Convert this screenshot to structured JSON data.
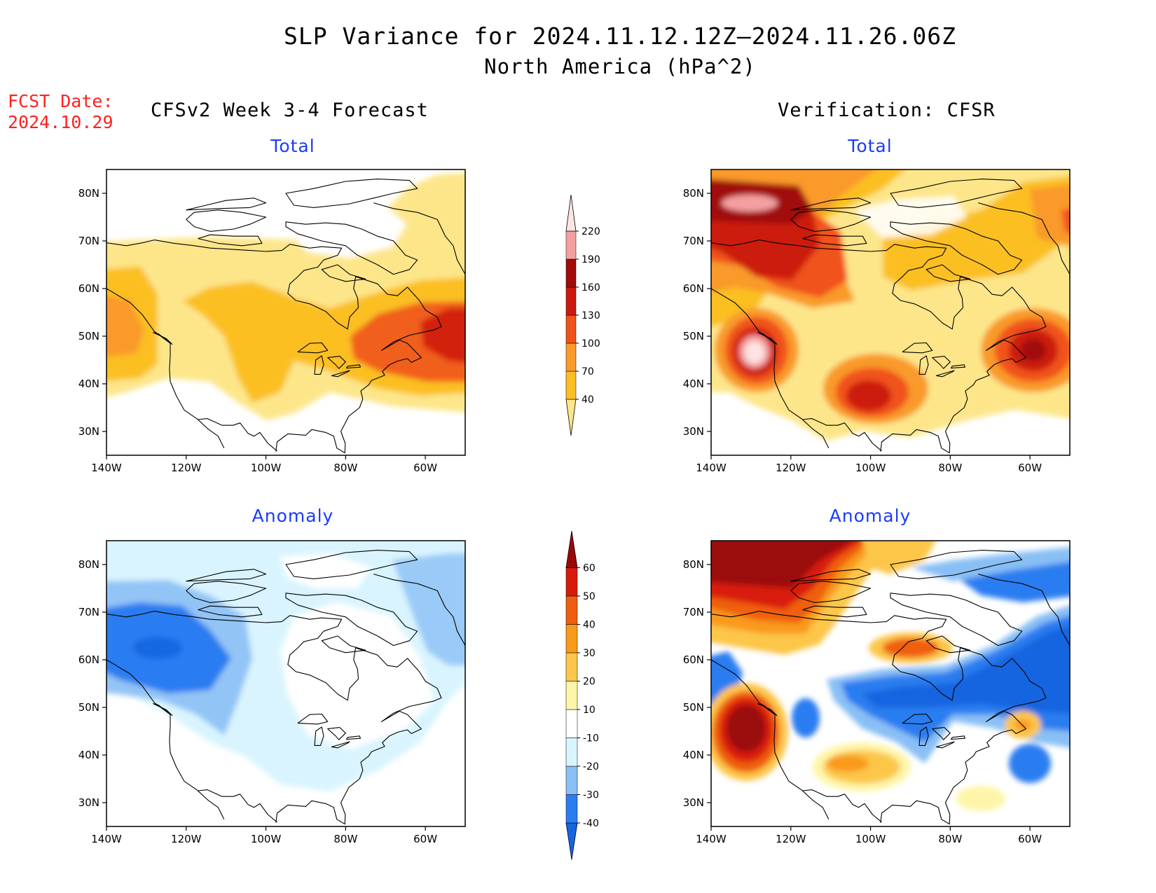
{
  "title": {
    "line1": "SLP Variance for 2024.11.12.12Z–2024.11.26.06Z",
    "line2": "North America (hPa^2)"
  },
  "fcst": {
    "line1": "FCST Date:",
    "line2": "2024.10.29"
  },
  "columns": {
    "left": "CFSv2 Week 3-4 Forecast",
    "right": "Verification: CFSR"
  },
  "panels": [
    {
      "id": "fcst-total",
      "title": "Total"
    },
    {
      "id": "verif-total",
      "title": "Total"
    },
    {
      "id": "fcst-anomaly",
      "title": "Anomaly"
    },
    {
      "id": "verif-anomaly",
      "title": "Anomaly"
    }
  ],
  "axes": {
    "lat_labels": [
      "80N",
      "70N",
      "60N",
      "50N",
      "40N",
      "30N"
    ],
    "lon_labels": [
      "140W",
      "120W",
      "100W",
      "80W",
      "60W"
    ],
    "lat_values": [
      80,
      70,
      60,
      50,
      40,
      30
    ],
    "lon_values": [
      -140,
      -120,
      -100,
      -80,
      -60
    ],
    "lat_range": [
      25,
      85
    ],
    "lon_range": [
      -140,
      -50
    ]
  },
  "total_colorbar": {
    "labels": [
      "40",
      "70",
      "100",
      "130",
      "160",
      "190",
      "220"
    ],
    "colors": [
      "#fde68a",
      "#fbbf24",
      "#f99a2a",
      "#f0531a",
      "#cc1a10",
      "#a10a0a",
      "#f4a0a0",
      "#fde3e3"
    ]
  },
  "anomaly_colorbar": {
    "labels": [
      "-40",
      "-30",
      "-20",
      "-10",
      "10",
      "20",
      "30",
      "40",
      "50",
      "60"
    ],
    "colors": [
      "#1565e0",
      "#2a7df0",
      "#89bff5",
      "#d9f4fe",
      "#ffffff",
      "#fff5a8",
      "#fcc64a",
      "#f99a1a",
      "#ef5e10",
      "#d81a0c",
      "#9b0808"
    ]
  }
}
